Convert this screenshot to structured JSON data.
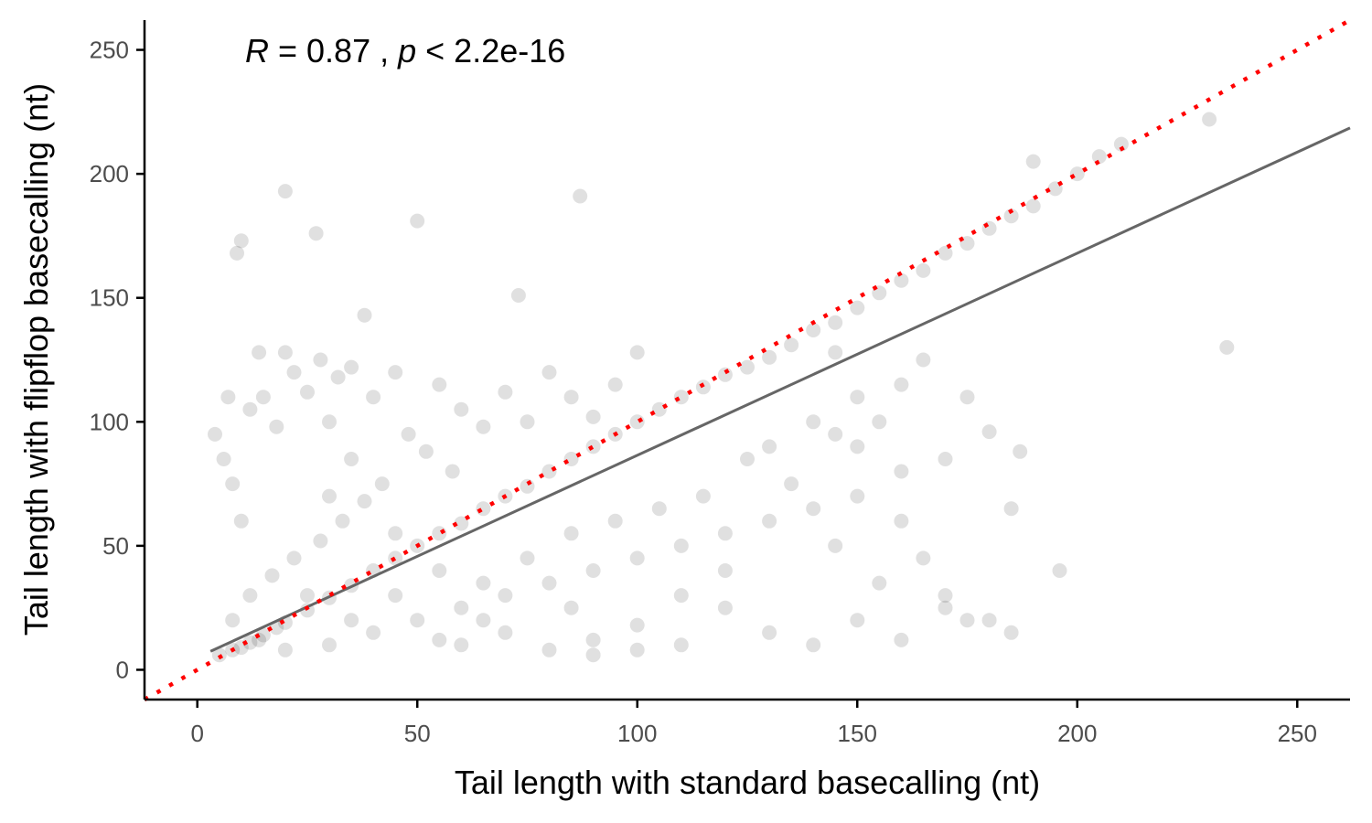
{
  "chart_data": {
    "type": "scatter",
    "title": "",
    "xlabel": "Tail length with standard basecalling (nt)",
    "ylabel": "Tail length with flipflop basecalling (nt)",
    "xlim": [
      -12,
      262
    ],
    "ylim": [
      -12,
      262
    ],
    "xticks": [
      "0",
      "50",
      "100",
      "150",
      "200",
      "250"
    ],
    "yticks": [
      "0",
      "50",
      "100",
      "150",
      "200",
      "250"
    ],
    "grid": false,
    "annotation": {
      "r_symbol": "R",
      "r_text": " = 0.87 , ",
      "p_symbol": "p",
      "p_text": " < 2.2e-16"
    },
    "identity_line": {
      "slope": 1,
      "intercept": 0,
      "color": "#ff0000",
      "style": "dotted"
    },
    "regression_line": {
      "slope": 0.815,
      "intercept": 5,
      "x_range": [
        3,
        262
      ],
      "color": "#666666"
    },
    "point_color": "#000000",
    "points": [
      [
        5,
        6
      ],
      [
        8,
        8
      ],
      [
        10,
        9
      ],
      [
        12,
        11
      ],
      [
        15,
        14
      ],
      [
        18,
        17
      ],
      [
        20,
        19
      ],
      [
        25,
        24
      ],
      [
        30,
        29
      ],
      [
        35,
        34
      ],
      [
        40,
        40
      ],
      [
        45,
        45
      ],
      [
        50,
        50
      ],
      [
        55,
        55
      ],
      [
        60,
        59
      ],
      [
        65,
        65
      ],
      [
        70,
        70
      ],
      [
        75,
        74
      ],
      [
        80,
        80
      ],
      [
        85,
        85
      ],
      [
        90,
        90
      ],
      [
        95,
        95
      ],
      [
        100,
        100
      ],
      [
        105,
        105
      ],
      [
        110,
        110
      ],
      [
        115,
        114
      ],
      [
        120,
        119
      ],
      [
        125,
        122
      ],
      [
        130,
        126
      ],
      [
        135,
        131
      ],
      [
        140,
        137
      ],
      [
        145,
        140
      ],
      [
        150,
        146
      ],
      [
        155,
        152
      ],
      [
        160,
        157
      ],
      [
        165,
        161
      ],
      [
        170,
        168
      ],
      [
        175,
        172
      ],
      [
        180,
        178
      ],
      [
        185,
        183
      ],
      [
        190,
        187
      ],
      [
        195,
        194
      ],
      [
        200,
        200
      ],
      [
        205,
        207
      ],
      [
        210,
        212
      ],
      [
        190,
        205
      ],
      [
        230,
        222
      ],
      [
        234,
        130
      ],
      [
        187,
        88
      ],
      [
        196,
        40
      ],
      [
        20,
        193
      ],
      [
        50,
        181
      ],
      [
        87,
        191
      ],
      [
        10,
        173
      ],
      [
        27,
        176
      ],
      [
        73,
        151
      ],
      [
        38,
        143
      ],
      [
        9,
        168
      ],
      [
        22,
        120
      ],
      [
        28,
        125
      ],
      [
        32,
        118
      ],
      [
        35,
        122
      ],
      [
        25,
        112
      ],
      [
        15,
        110
      ],
      [
        12,
        105
      ],
      [
        18,
        98
      ],
      [
        30,
        100
      ],
      [
        40,
        110
      ],
      [
        45,
        120
      ],
      [
        55,
        115
      ],
      [
        60,
        105
      ],
      [
        65,
        98
      ],
      [
        70,
        112
      ],
      [
        80,
        120
      ],
      [
        85,
        110
      ],
      [
        90,
        102
      ],
      [
        95,
        115
      ],
      [
        75,
        100
      ],
      [
        48,
        95
      ],
      [
        52,
        88
      ],
      [
        58,
        80
      ],
      [
        42,
        75
      ],
      [
        38,
        68
      ],
      [
        33,
        60
      ],
      [
        28,
        52
      ],
      [
        22,
        45
      ],
      [
        17,
        38
      ],
      [
        12,
        30
      ],
      [
        8,
        20
      ],
      [
        14,
        12
      ],
      [
        20,
        8
      ],
      [
        30,
        10
      ],
      [
        40,
        15
      ],
      [
        50,
        20
      ],
      [
        60,
        25
      ],
      [
        70,
        30
      ],
      [
        80,
        35
      ],
      [
        90,
        40
      ],
      [
        100,
        45
      ],
      [
        110,
        50
      ],
      [
        120,
        55
      ],
      [
        130,
        60
      ],
      [
        140,
        65
      ],
      [
        150,
        70
      ],
      [
        160,
        60
      ],
      [
        165,
        45
      ],
      [
        170,
        30
      ],
      [
        175,
        20
      ],
      [
        60,
        10
      ],
      [
        70,
        15
      ],
      [
        80,
        8
      ],
      [
        90,
        12
      ],
      [
        100,
        18
      ],
      [
        110,
        10
      ],
      [
        120,
        25
      ],
      [
        130,
        15
      ],
      [
        140,
        10
      ],
      [
        150,
        20
      ],
      [
        160,
        12
      ],
      [
        170,
        25
      ],
      [
        180,
        20
      ],
      [
        185,
        15
      ],
      [
        155,
        35
      ],
      [
        145,
        50
      ],
      [
        135,
        75
      ],
      [
        125,
        85
      ],
      [
        145,
        95
      ],
      [
        155,
        100
      ],
      [
        160,
        115
      ],
      [
        150,
        110
      ],
      [
        140,
        100
      ],
      [
        130,
        90
      ],
      [
        30,
        70
      ],
      [
        35,
        85
      ],
      [
        45,
        55
      ],
      [
        55,
        40
      ],
      [
        65,
        35
      ],
      [
        75,
        45
      ],
      [
        85,
        55
      ],
      [
        95,
        60
      ],
      [
        105,
        65
      ],
      [
        115,
        70
      ],
      [
        25,
        30
      ],
      [
        35,
        20
      ],
      [
        45,
        30
      ],
      [
        55,
        12
      ],
      [
        65,
        20
      ],
      [
        85,
        25
      ],
      [
        10,
        60
      ],
      [
        8,
        75
      ],
      [
        6,
        85
      ],
      [
        4,
        95
      ],
      [
        7,
        110
      ],
      [
        14,
        128
      ],
      [
        20,
        128
      ],
      [
        100,
        128
      ],
      [
        145,
        128
      ],
      [
        165,
        125
      ],
      [
        175,
        110
      ],
      [
        180,
        96
      ],
      [
        185,
        65
      ],
      [
        170,
        85
      ],
      [
        160,
        80
      ],
      [
        150,
        90
      ],
      [
        120,
        40
      ],
      [
        110,
        30
      ],
      [
        100,
        8
      ],
      [
        90,
        6
      ]
    ]
  }
}
